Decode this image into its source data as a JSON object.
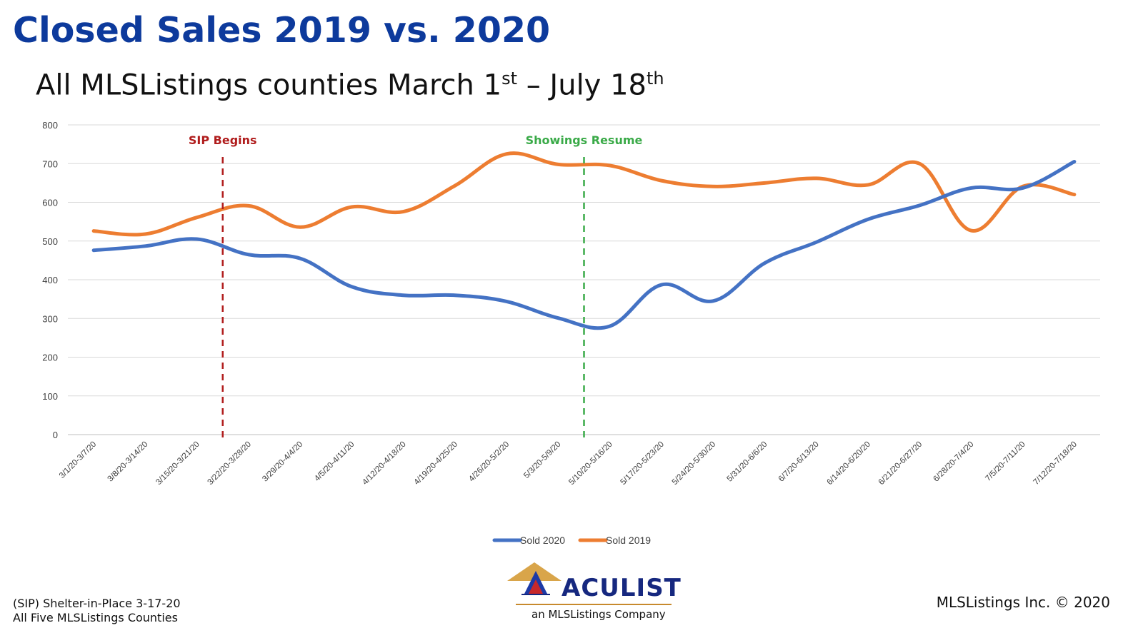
{
  "header": {
    "title": "Closed Sales 2019 vs. 2020",
    "subtitle_prefix": "All MLSListings counties March 1",
    "subtitle_sup1": "st",
    "subtitle_mid": " – July 18",
    "subtitle_sup2": "th"
  },
  "footer": {
    "left_line1": "(SIP) Shelter-in-Place 3-17-20",
    "left_line2": "All Five MLSListings Counties",
    "right": "MLSListings Inc. © 2020",
    "logo_name": "ACULIST",
    "logo_tagline": "an MLSListings Company",
    "logo_icon": "house-roof-logo-icon"
  },
  "chart_data": {
    "type": "line",
    "categories": [
      "3/1/20-3/7/20",
      "3/8/20-3/14/20",
      "3/15/20-3/21/20",
      "3/22/20-3/28/20",
      "3/29/20-4/4/20",
      "4/5/20-4/11/20",
      "4/12/20-4/18/20",
      "4/19/20-4/25/20",
      "4/26/20-5/2/20",
      "5/3/20-5/9/20",
      "5/10/20-5/16/20",
      "5/17/20-5/23/20",
      "5/24/20-5/30/20",
      "5/31/20-6/6/20",
      "6/7/20-6/13/20",
      "6/14/20-6/20/20",
      "6/21/20-6/27/20",
      "6/28/20-7/4/20",
      "7/5/20-7/11/20",
      "7/12/20-7/18/20"
    ],
    "series": [
      {
        "name": "Sold 2020",
        "color": "#4472c4",
        "values": [
          476,
          487,
          505,
          465,
          455,
          382,
          360,
          360,
          344,
          301,
          280,
          387,
          345,
          443,
          497,
          556,
          592,
          637,
          637,
          705
        ]
      },
      {
        "name": "Sold 2019",
        "color": "#ed7d31",
        "values": [
          526,
          518,
          561,
          591,
          536,
          588,
          576,
          643,
          725,
          698,
          695,
          656,
          641,
          650,
          662,
          645,
          700,
          527,
          641,
          620
        ]
      }
    ],
    "ylim": [
      0,
      800
    ],
    "yticks": [
      0,
      100,
      200,
      300,
      400,
      500,
      600,
      700,
      800
    ],
    "grid": true,
    "legend_position": "bottom",
    "annotations": [
      {
        "label": "SIP Begins",
        "x_between": [
          2,
          3
        ],
        "color": "#b01c1c"
      },
      {
        "label": "Showings Resume",
        "x_between": [
          9,
          10
        ],
        "color": "#3aaa48"
      }
    ]
  }
}
